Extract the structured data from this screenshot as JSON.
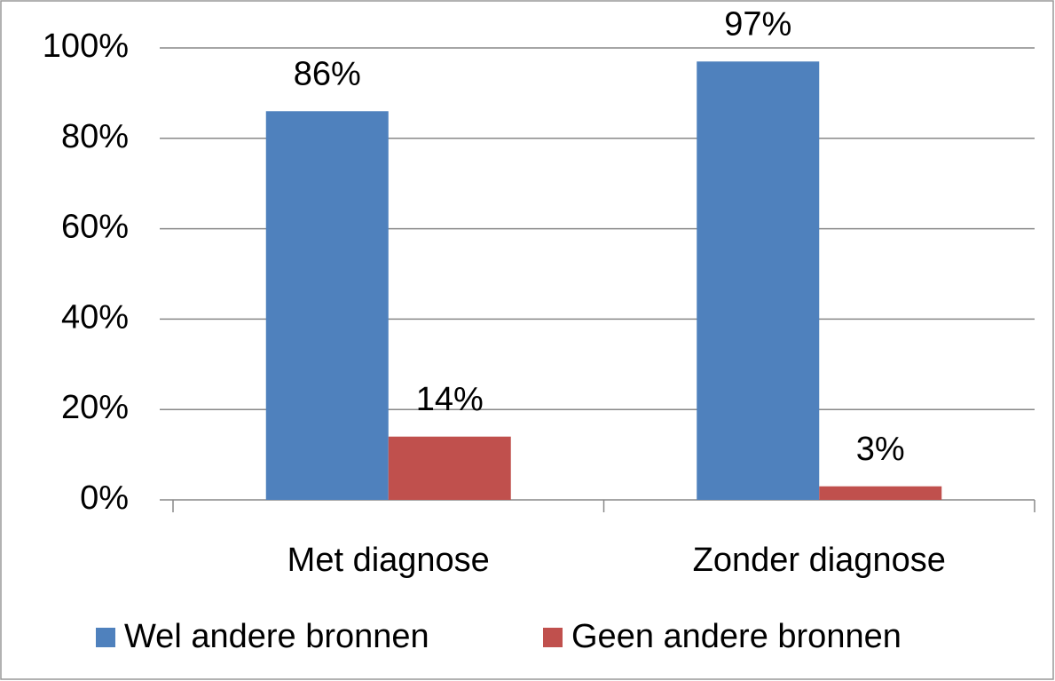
{
  "chart_data": {
    "type": "bar",
    "categories": [
      "Met diagnose",
      "Zonder diagnose"
    ],
    "series": [
      {
        "name": "Wel andere bronnen",
        "color": "#4f81bd",
        "values": [
          86,
          97
        ],
        "value_labels": [
          "86%",
          "97%"
        ]
      },
      {
        "name": "Geen andere bronnen",
        "color": "#c0504d",
        "values": [
          14,
          3
        ],
        "value_labels": [
          "14%",
          "3%"
        ]
      }
    ],
    "ylim": [
      0,
      100
    ],
    "yticks": [
      {
        "value": 0,
        "label": "0%"
      },
      {
        "value": 20,
        "label": "20%"
      },
      {
        "value": 40,
        "label": "40%"
      },
      {
        "value": 60,
        "label": "60%"
      },
      {
        "value": 80,
        "label": "80%"
      },
      {
        "value": 100,
        "label": "100%"
      }
    ],
    "grid": true,
    "legend": "bottom"
  }
}
